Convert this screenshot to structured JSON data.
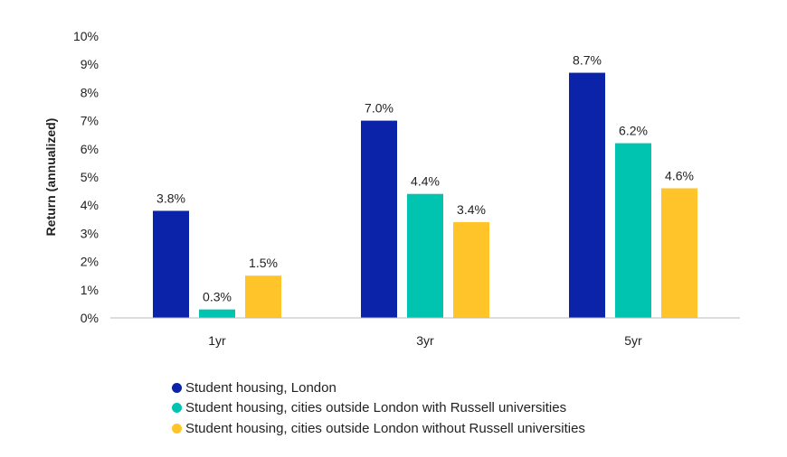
{
  "chart_data": {
    "type": "bar",
    "ylabel": "Return (annualized)",
    "xlabel": "",
    "ylim": [
      0,
      10
    ],
    "yticks": [
      "0%",
      "1%",
      "2%",
      "3%",
      "4%",
      "5%",
      "6%",
      "7%",
      "8%",
      "9%",
      "10%"
    ],
    "categories": [
      "1yr",
      "3yr",
      "5yr"
    ],
    "grid": false,
    "legend_placement": "bottom",
    "series": [
      {
        "name": "Student housing, London",
        "color": "#0a23a8",
        "values": [
          3.8,
          7.0,
          8.7
        ],
        "labels": [
          "3.8%",
          "7.0%",
          "8.7%"
        ]
      },
      {
        "name": "Student housing, cities outside London with Russell universities",
        "color": "#00c4b0",
        "values": [
          0.3,
          4.4,
          6.2
        ],
        "labels": [
          "0.3%",
          "4.4%",
          "6.2%"
        ]
      },
      {
        "name": "Student housing, cities outside London without Russell universities",
        "color": "#ffc42a",
        "values": [
          1.5,
          3.4,
          4.6
        ],
        "labels": [
          "1.5%",
          "3.4%",
          "4.6%"
        ]
      }
    ]
  }
}
